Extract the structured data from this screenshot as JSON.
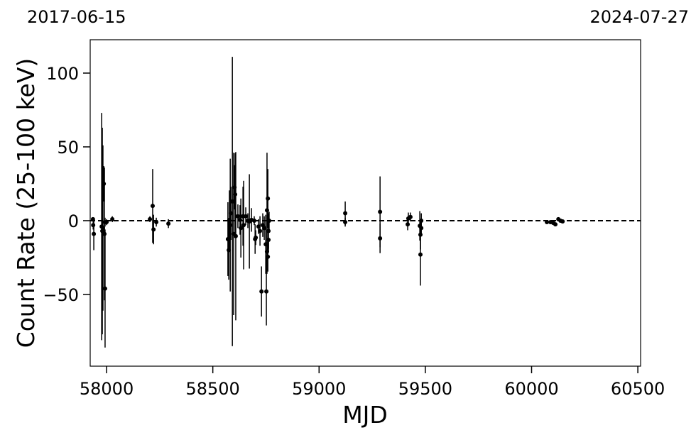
{
  "chart_data": {
    "type": "scatter",
    "annotations": [
      "2017-06-15",
      "2024-07-27"
    ],
    "xlabel": "MJD",
    "ylabel": "Count Rate (25-100 keV)",
    "xlim": [
      57923,
      60513
    ],
    "ylim": [
      -98.6,
      122.6
    ],
    "xticks": [
      58000,
      58500,
      59000,
      59500,
      60000,
      60500
    ],
    "yticks": [
      {
        "value": -50,
        "label": "−50"
      },
      0,
      50,
      100
    ],
    "reference_line": 0,
    "grid": false,
    "series": [
      {
        "color": "#000000",
        "x": [
          57936,
          57937,
          57940,
          57977,
          57980,
          57983,
          57987,
          57990,
          57993,
          57993,
          58000,
          58027,
          58204,
          58217,
          58221,
          58234,
          58291,
          58571,
          58575,
          58578,
          58582,
          58585,
          58592,
          58598,
          58602,
          58605,
          58608,
          58618,
          58628,
          58632,
          58642,
          58645,
          58655,
          58665,
          58672,
          58682,
          58695,
          58699,
          58702,
          58715,
          58722,
          58729,
          58735,
          58742,
          58749,
          58752,
          58755,
          58755,
          58759,
          58759,
          58762,
          58762,
          58765,
          59123,
          59123,
          59287,
          59287,
          59417,
          59420,
          59430,
          59474,
          59477,
          59477,
          59481,
          59481,
          60072,
          60089,
          60102,
          60112,
          60126,
          60136,
          60146
        ],
        "values": [
          1,
          -3,
          -9,
          -4,
          -7,
          -5,
          25,
          -9,
          -46,
          -1,
          -1,
          1,
          1,
          10,
          -6,
          -1,
          -2,
          -12.5,
          -20,
          0.5,
          -3,
          5,
          13,
          -9,
          22.6,
          17.8,
          -10.5,
          3,
          0.5,
          -5,
          3,
          -3,
          3,
          0,
          -0.5,
          0.5,
          0,
          -12.5,
          -11.5,
          -4,
          -7,
          -48,
          -3,
          -5,
          -16,
          -48,
          7,
          -21,
          -24.5,
          15,
          -13,
          -7,
          0,
          5,
          -1,
          6,
          -12,
          -2.5,
          1.5,
          2.5,
          -3.5,
          -9.5,
          -23,
          -5,
          0,
          -1,
          -1,
          -1.5,
          -2.5,
          1,
          0,
          -0.5
        ],
        "errors": [
          1,
          3,
          11,
          77,
          70,
          56,
          12,
          45,
          40,
          3,
          2,
          2,
          2,
          25,
          10,
          3,
          3,
          25,
          20,
          20,
          45,
          18,
          98,
          55,
          15,
          28,
          57,
          8,
          10,
          20,
          20,
          30,
          6,
          5,
          32,
          8,
          3,
          10,
          5,
          5,
          10,
          17,
          8,
          8,
          20,
          23,
          39,
          15,
          10,
          20,
          8,
          12,
          6,
          8,
          3,
          24,
          10,
          4,
          4,
          3,
          10,
          10,
          21,
          5,
          5,
          1,
          1,
          1,
          1,
          1,
          1,
          1
        ]
      }
    ]
  }
}
